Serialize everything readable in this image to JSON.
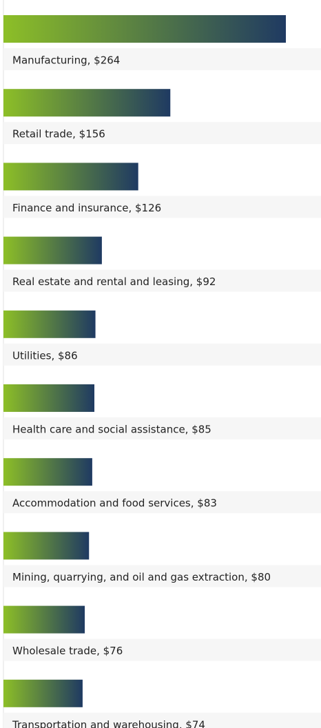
{
  "chart_data": {
    "type": "bar",
    "orientation": "horizontal",
    "categories": [
      "Manufacturing, $264",
      "Retail trade, $156",
      "Finance and insurance, $126",
      "Real estate and rental and leasing, $92",
      "Utilities, $86",
      "Health care and social assistance, $85",
      "Accommodation and food services, $83",
      "Mining, quarrying, and oil and gas extraction, $80",
      "Wholesale trade, $76",
      "Transportation and warehousing, $74"
    ],
    "values": [
      264,
      156,
      126,
      92,
      86,
      85,
      83,
      80,
      76,
      74
    ],
    "gradient": [
      "#8dbf27",
      "#1f3a62"
    ]
  }
}
